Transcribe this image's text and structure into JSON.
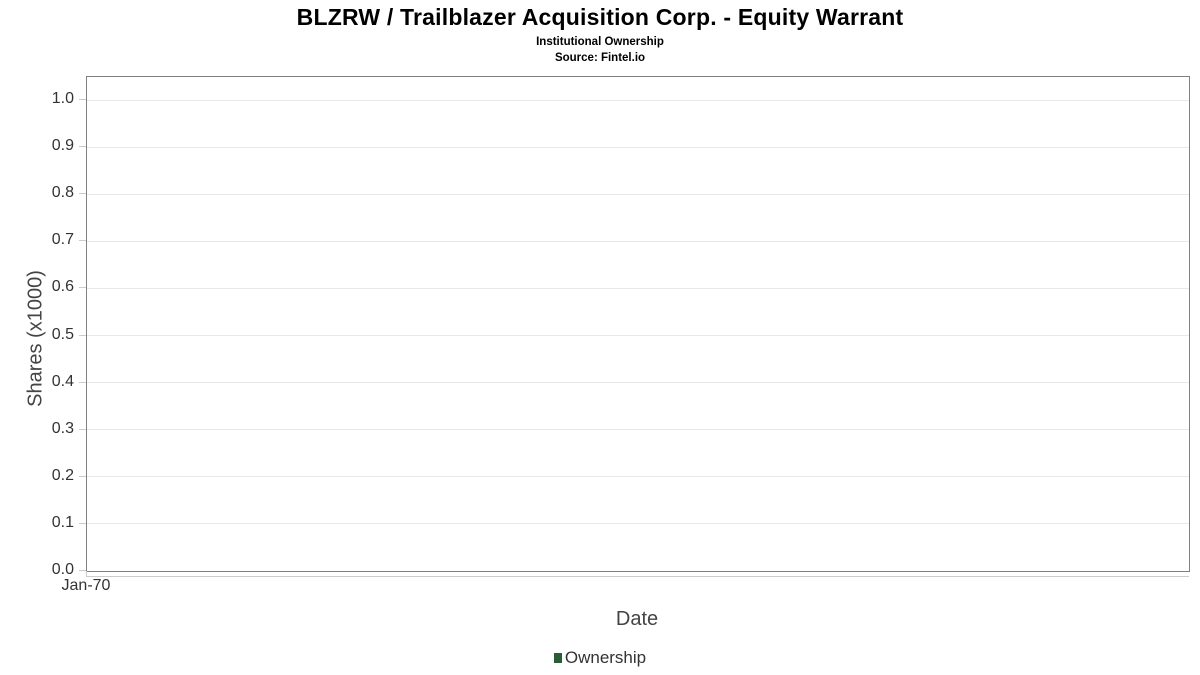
{
  "header": {
    "title": "BLZRW / Trailblazer Acquisition Corp. - Equity Warrant",
    "subtitle": "Institutional Ownership",
    "source": "Source: Fintel.io"
  },
  "chart_data": {
    "type": "line",
    "title": "BLZRW / Trailblazer Acquisition Corp. - Equity Warrant",
    "subtitle": "Institutional Ownership",
    "source": "Source: Fintel.io",
    "xlabel": "Date",
    "ylabel": "Shares (x1000)",
    "ylim": [
      0.0,
      1.0
    ],
    "y_tick_values": [
      0.0,
      0.1,
      0.2,
      0.3,
      0.4,
      0.5,
      0.6,
      0.7,
      0.8,
      0.9,
      1.0
    ],
    "y_tick_labels": [
      "0.0",
      "0.1",
      "0.2",
      "0.3",
      "0.4",
      "0.5",
      "0.6",
      "0.7",
      "0.8",
      "0.9",
      "1.0"
    ],
    "x_tick_labels": [
      "Jan-70"
    ],
    "grid": "horizontal",
    "legend_position": "bottom-center",
    "series": [
      {
        "name": "Ownership",
        "color": "#2a5c36",
        "x": [],
        "values": []
      }
    ]
  },
  "colors": {
    "plot_border": "#808080",
    "gridline": "#e8e8e8",
    "tick": "#cccccc",
    "tick_label": "#333333",
    "axis_title": "#444444",
    "title_text": "#000000",
    "background": "#ffffff"
  }
}
